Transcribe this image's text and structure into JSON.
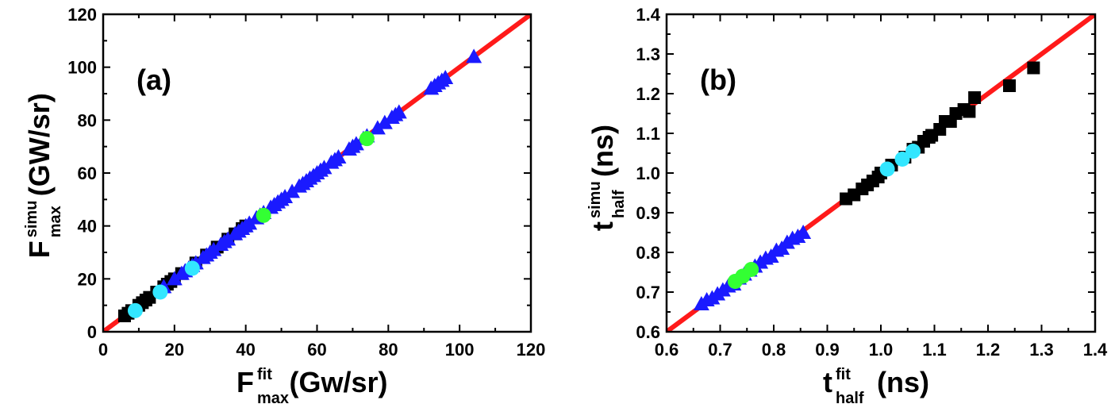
{
  "chart_data": [
    {
      "type": "scatter",
      "panel_label": "(a)",
      "xlabel": {
        "main": "F",
        "sup": "fit",
        "sub": "max",
        "unit": "(Gw/sr)"
      },
      "ylabel": {
        "main": "F",
        "sup": "simu",
        "sub": "max",
        "unit": "(GW/sr)"
      },
      "xlim": [
        0,
        120
      ],
      "ylim": [
        0,
        120
      ],
      "xticks": [
        0,
        20,
        40,
        60,
        80,
        100,
        120
      ],
      "yticks": [
        0,
        20,
        40,
        60,
        80,
        100,
        120
      ],
      "tick_decimals": 0,
      "reference_line": {
        "from": [
          0,
          0
        ],
        "to": [
          120,
          120
        ],
        "color": "#ff1a1a"
      },
      "series": [
        {
          "marker": "square",
          "color": "#000000",
          "points": [
            [
              6,
              6
            ],
            [
              7,
              7
            ],
            [
              8,
              8
            ],
            [
              10,
              10
            ],
            [
              11,
              11
            ],
            [
              12,
              12
            ],
            [
              13,
              13
            ],
            [
              15,
              15
            ],
            [
              17,
              17
            ],
            [
              18,
              18
            ],
            [
              19,
              19
            ],
            [
              20,
              20
            ],
            [
              22,
              22
            ],
            [
              26,
              26
            ],
            [
              29,
              29
            ],
            [
              32,
              32
            ],
            [
              35,
              35
            ],
            [
              37,
              37
            ],
            [
              39,
              39
            ],
            [
              40,
              40
            ]
          ]
        },
        {
          "marker": "triangle",
          "color": "#1a1aff",
          "points": [
            [
              17,
              17
            ],
            [
              20,
              20
            ],
            [
              22,
              22
            ],
            [
              23,
              23
            ],
            [
              24,
              24
            ],
            [
              25,
              25
            ],
            [
              26,
              26
            ],
            [
              28,
              28
            ],
            [
              29,
              29
            ],
            [
              30,
              30
            ],
            [
              31,
              31
            ],
            [
              33,
              33
            ],
            [
              34,
              34
            ],
            [
              35,
              35
            ],
            [
              37,
              37
            ],
            [
              38,
              38
            ],
            [
              39,
              39
            ],
            [
              40,
              40
            ],
            [
              41,
              41
            ],
            [
              43,
              43
            ],
            [
              44,
              44
            ],
            [
              45,
              45
            ],
            [
              47,
              47
            ],
            [
              48,
              48
            ],
            [
              49,
              49
            ],
            [
              50,
              50
            ],
            [
              51,
              51
            ],
            [
              53,
              53
            ],
            [
              55,
              55
            ],
            [
              56,
              56
            ],
            [
              57,
              57
            ],
            [
              58,
              58
            ],
            [
              59,
              59
            ],
            [
              60,
              60
            ],
            [
              61,
              61
            ],
            [
              62,
              62
            ],
            [
              64,
              64
            ],
            [
              65,
              65
            ],
            [
              66,
              66
            ],
            [
              69,
              69
            ],
            [
              70,
              70
            ],
            [
              71,
              71
            ],
            [
              73,
              73
            ],
            [
              74,
              74
            ],
            [
              77,
              77
            ],
            [
              79,
              79
            ],
            [
              81,
              81
            ],
            [
              82,
              82
            ],
            [
              83,
              83
            ],
            [
              92,
              92
            ],
            [
              93,
              93
            ],
            [
              94,
              94
            ],
            [
              95,
              95
            ],
            [
              96,
              96
            ],
            [
              104,
              104
            ]
          ]
        },
        {
          "marker": "circle",
          "color": "#33ff33",
          "points": [
            [
              45,
              44
            ],
            [
              74,
              73
            ]
          ]
        },
        {
          "marker": "circle",
          "color": "#33e6ff",
          "points": [
            [
              9,
              8
            ],
            [
              16,
              15
            ],
            [
              25,
              24
            ]
          ]
        }
      ]
    },
    {
      "type": "scatter",
      "panel_label": "(b)",
      "xlabel": {
        "main": "t",
        "sup": "fit",
        "sub": "half",
        "unit": "(ns)"
      },
      "ylabel": {
        "main": "t",
        "sup": "simu",
        "sub": "half",
        "unit": "(ns)"
      },
      "xlim": [
        0.6,
        1.4
      ],
      "ylim": [
        0.6,
        1.4
      ],
      "xticks": [
        0.6,
        0.7,
        0.8,
        0.9,
        1.0,
        1.1,
        1.2,
        1.3,
        1.4
      ],
      "yticks": [
        0.6,
        0.7,
        0.8,
        0.9,
        1.0,
        1.1,
        1.2,
        1.3,
        1.4
      ],
      "tick_decimals": 1,
      "reference_line": {
        "from": [
          0.6,
          0.6
        ],
        "to": [
          1.4,
          1.4
        ],
        "color": "#ff1a1a"
      },
      "series": [
        {
          "marker": "square",
          "color": "#000000",
          "points": [
            [
              0.935,
              0.935
            ],
            [
              0.95,
              0.945
            ],
            [
              0.965,
              0.96
            ],
            [
              0.975,
              0.97
            ],
            [
              0.985,
              0.98
            ],
            [
              0.995,
              0.99
            ],
            [
              1.0,
              1.0
            ],
            [
              1.02,
              1.02
            ],
            [
              1.045,
              1.04
            ],
            [
              1.06,
              1.06
            ],
            [
              1.07,
              1.065
            ],
            [
              1.08,
              1.08
            ],
            [
              1.09,
              1.09
            ],
            [
              1.095,
              1.095
            ],
            [
              1.11,
              1.11
            ],
            [
              1.12,
              1.13
            ],
            [
              1.13,
              1.13
            ],
            [
              1.14,
              1.15
            ],
            [
              1.155,
              1.16
            ],
            [
              1.165,
              1.155
            ],
            [
              1.175,
              1.19
            ],
            [
              1.24,
              1.22
            ],
            [
              1.285,
              1.265
            ]
          ]
        },
        {
          "marker": "triangle",
          "color": "#1a1aff",
          "points": [
            [
              0.665,
              0.67
            ],
            [
              0.675,
              0.68
            ],
            [
              0.685,
              0.685
            ],
            [
              0.695,
              0.695
            ],
            [
              0.705,
              0.705
            ],
            [
              0.715,
              0.715
            ],
            [
              0.725,
              0.72
            ],
            [
              0.735,
              0.735
            ],
            [
              0.745,
              0.745
            ],
            [
              0.755,
              0.755
            ],
            [
              0.765,
              0.765
            ],
            [
              0.775,
              0.775
            ],
            [
              0.785,
              0.785
            ],
            [
              0.795,
              0.79
            ],
            [
              0.805,
              0.805
            ],
            [
              0.815,
              0.81
            ],
            [
              0.825,
              0.825
            ],
            [
              0.835,
              0.835
            ],
            [
              0.845,
              0.84
            ],
            [
              0.855,
              0.85
            ]
          ]
        },
        {
          "marker": "circle",
          "color": "#33ff33",
          "points": [
            [
              0.728,
              0.727
            ],
            [
              0.742,
              0.74
            ],
            [
              0.758,
              0.757
            ]
          ]
        },
        {
          "marker": "circle",
          "color": "#33e6ff",
          "points": [
            [
              1.012,
              1.01
            ],
            [
              1.04,
              1.035
            ],
            [
              1.06,
              1.055
            ]
          ]
        }
      ]
    }
  ]
}
